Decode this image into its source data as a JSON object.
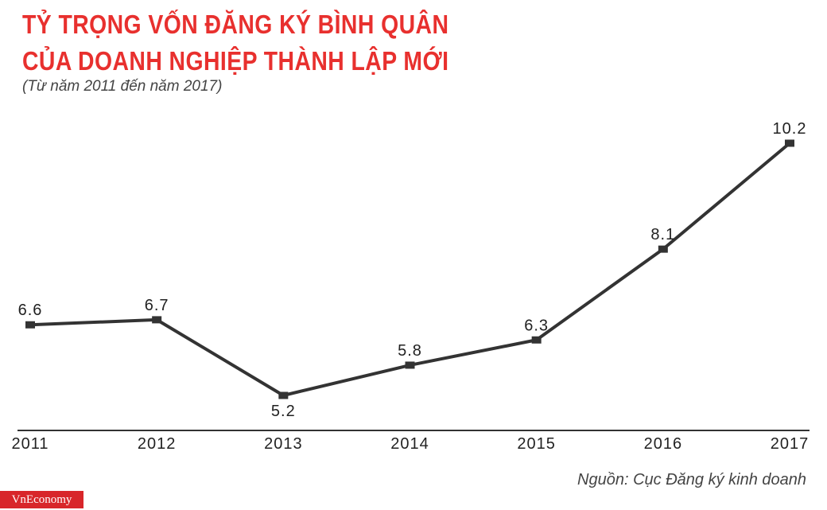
{
  "title_line1": "TỶ TRỌNG VỐN ĐĂNG KÝ BÌNH QUÂN",
  "title_line2": "CỦA DOANH NGHIỆP THÀNH LẬP MỚI",
  "subtitle": "(Từ năm 2011 đến năm 2017)",
  "source": "Nguồn: Cục Đăng ký kinh doanh",
  "logo": "VnEconomy",
  "colors": {
    "title": "#e8302e",
    "line": "#333333",
    "axis": "#333333",
    "logo_bg": "#d8262a"
  },
  "chart_data": {
    "type": "line",
    "categories": [
      "2011",
      "2012",
      "2013",
      "2014",
      "2015",
      "2016",
      "2017"
    ],
    "series": [
      {
        "values": [
          6.6,
          6.7,
          5.2,
          5.8,
          6.3,
          8.1,
          10.2
        ]
      }
    ],
    "data_labels": [
      "6.6",
      "6.7",
      "5.2",
      "5.8",
      "6.3",
      "8.1",
      "10.2"
    ],
    "label_positions": [
      "above",
      "above",
      "below",
      "above",
      "above",
      "above",
      "above"
    ],
    "xlabel": "",
    "ylabel": "",
    "grid": false,
    "legend": "none"
  }
}
